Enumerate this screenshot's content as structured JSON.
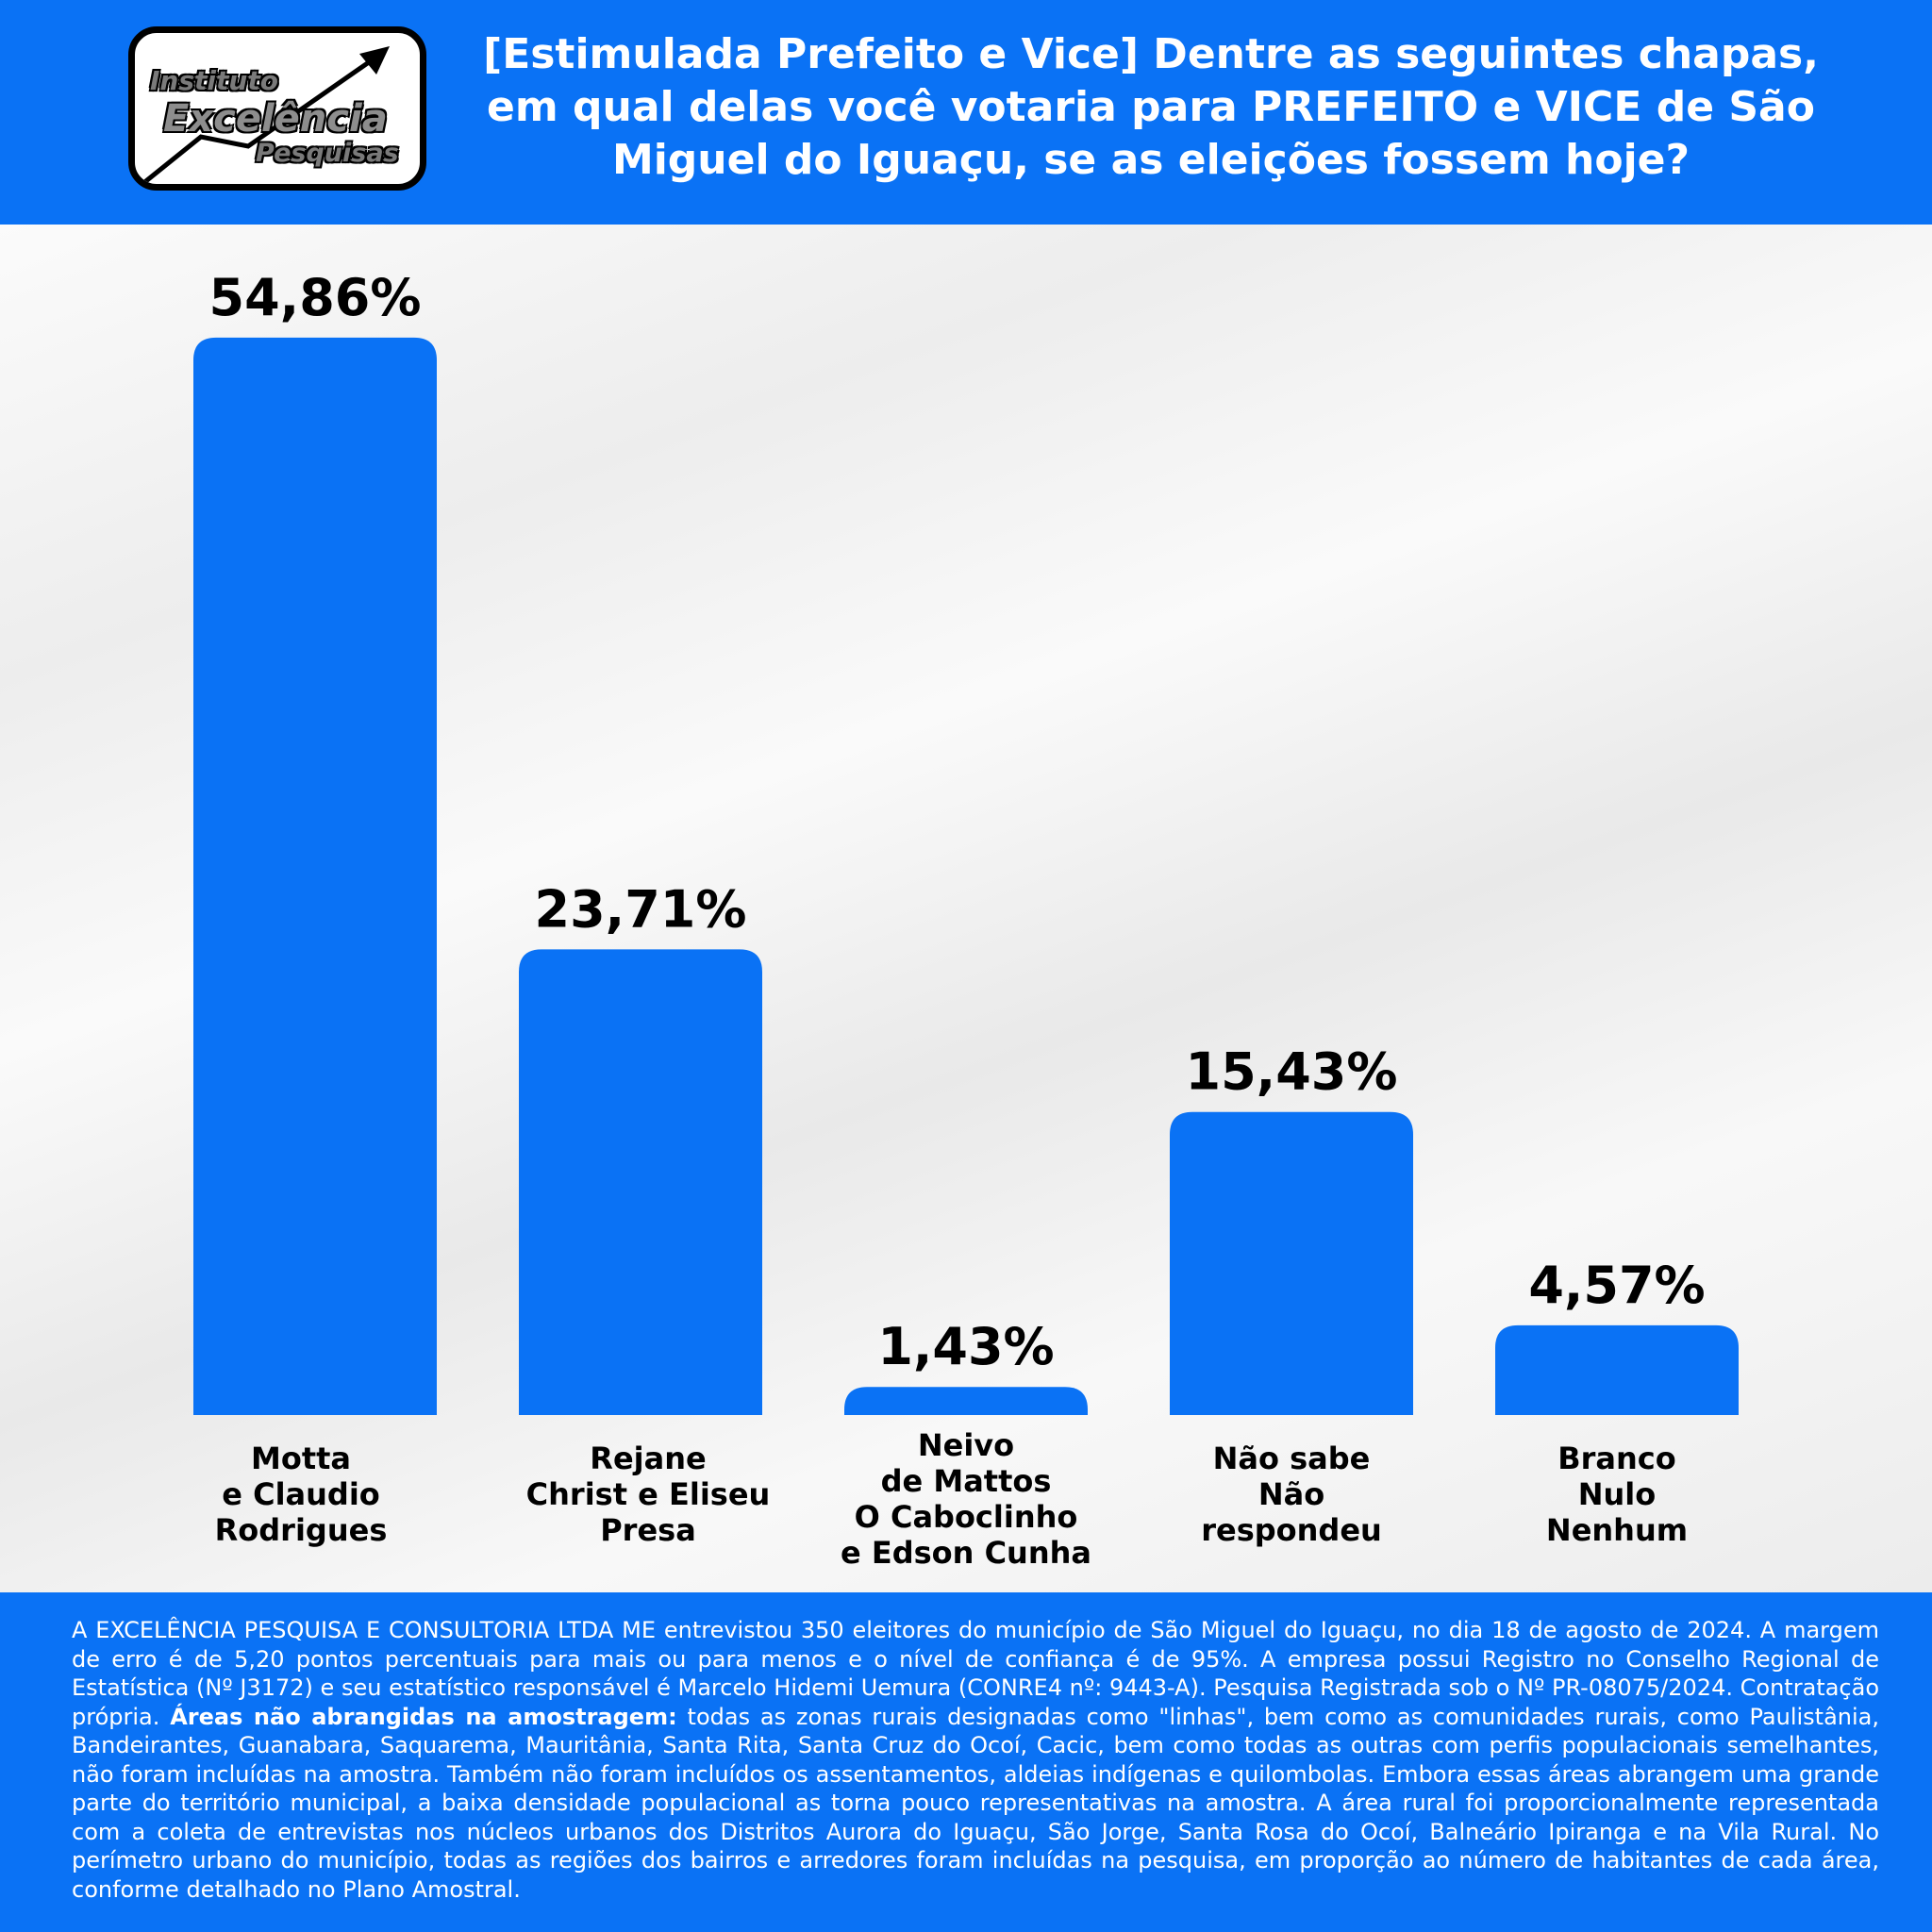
{
  "logo": {
    "line1": "Instituto",
    "line2": "Excelência",
    "line3": "Pesquisas"
  },
  "header": {
    "title": "[Estimulada Prefeito e Vice] Dentre as seguintes chapas, em qual delas você votaria para PREFEITO e VICE de São Miguel do Iguaçu, se as eleições fossem hoje?"
  },
  "colors": {
    "accent": "#0a72f5",
    "text": "#000000"
  },
  "chart_data": {
    "type": "bar",
    "title": "[Estimulada Prefeito e Vice] Dentre as seguintes chapas, em qual delas você votaria para PREFEITO e VICE de São Miguel do Iguaçu, se as eleições fossem hoje?",
    "categories": [
      [
        "Motta",
        "e Claudio",
        "Rodrigues"
      ],
      [
        "Rejane",
        "Christ e Eliseu",
        "Presa"
      ],
      [
        "Neivo",
        "de Mattos",
        "O Caboclinho",
        "e Edson Cunha"
      ],
      [
        "Não sabe",
        "Não",
        "respondeu"
      ],
      [
        "Branco",
        "Nulo",
        "Nenhum"
      ]
    ],
    "values": [
      54.86,
      23.71,
      1.43,
      15.43,
      4.57
    ],
    "value_labels": [
      "54,86%",
      "23,71%",
      "1,43%",
      "15,43%",
      "4,57%"
    ],
    "xlabel": "",
    "ylabel": "",
    "grid": false,
    "legend": "none"
  },
  "footer": {
    "part1": "A EXCELÊNCIA PESQUISA E CONSULTORIA LTDA ME entrevistou 350 eleitores do município de São Miguel do Iguaçu, no dia 18 de agosto de 2024. A margem de erro é de 5,20 pontos percentuais para mais ou para menos e o nível de confiança é de 95%. A empresa possui Registro no Conselho Regional de Estatística (Nº J3172) e seu estatístico responsável é Marcelo Hidemi Uemura (CONRE4 nº: 9443-A). Pesquisa Registrada sob o Nº PR-08075/2024. Contratação própria.",
    "bold": "Áreas não abrangidas na amostragem:",
    "part2": "todas as zonas rurais designadas como \"linhas\", bem como as comunidades rurais, como Paulistânia, Bandeirantes, Guanabara, Saquarema, Mauritânia, Santa Rita, Santa Cruz do Ocoí, Cacic, bem como todas as outras com perfis populacionais semelhantes, não foram incluídas na amostra. Também não foram incluídos os assentamentos, aldeias indígenas e quilombolas. Embora essas áreas abrangem uma grande parte do território municipal, a baixa densidade populacional as torna pouco representativas na amostra. A área rural foi proporcionalmente representada com a coleta de entrevistas nos núcleos urbanos dos Distritos Aurora do Iguaçu, São Jorge, Santa Rosa do Ocoí, Balneário Ipiranga e na Vila Rural. No perímetro urbano do município, todas as regiões dos bairros e arredores foram incluídas na pesquisa, em proporção ao número de habitantes de cada área, conforme detalhado no Plano Amostral."
  }
}
